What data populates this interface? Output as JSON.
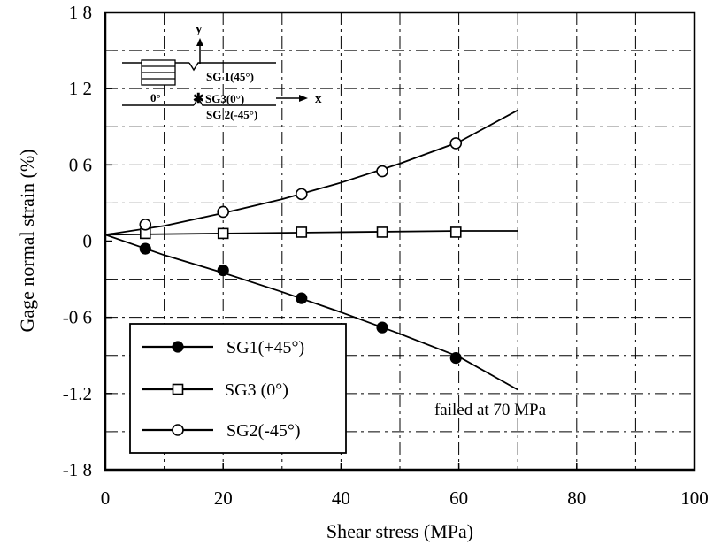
{
  "chart_data": {
    "type": "scatter",
    "xlabel": "Shear stress (MPa)",
    "ylabel": "Gage normal strain (%)",
    "xlim": [
      0,
      100
    ],
    "ylim": [
      -1.8,
      1.8
    ],
    "x_ticks": [
      0,
      20,
      40,
      60,
      80,
      100
    ],
    "x_tick_labels": [
      "0",
      "20",
      "40",
      "60",
      "80",
      "100"
    ],
    "y_ticks": [
      1.8,
      1.2,
      0.6,
      0,
      -0.6,
      -1.2,
      -1.8
    ],
    "y_tick_labels": [
      "1 8",
      "1 2",
      "0 6",
      "0",
      "-0 6",
      "-1.2",
      "-1 8"
    ],
    "grid": true,
    "legend_position": "bottom-left",
    "series": [
      {
        "name": "SG1(+45°)",
        "marker": "filled-circle",
        "x": [
          6.8,
          20.0,
          33.3,
          47.0,
          59.5
        ],
        "y": [
          -0.06,
          -0.23,
          -0.45,
          -0.68,
          -0.92
        ],
        "curve_x": [
          0,
          10,
          20,
          30,
          40,
          50,
          60,
          70
        ],
        "curve_y": [
          0.05,
          -0.11,
          -0.25,
          -0.4,
          -0.56,
          -0.73,
          -0.91,
          -1.17
        ]
      },
      {
        "name": "SG3 (0°)",
        "marker": "open-square",
        "x": [
          6.8,
          20.0,
          33.3,
          47.0,
          59.5
        ],
        "y": [
          0.06,
          0.06,
          0.07,
          0.07,
          0.07
        ],
        "curve_x": [
          0,
          20,
          40,
          60,
          70
        ],
        "curve_y": [
          0.05,
          0.06,
          0.07,
          0.08,
          0.08
        ]
      },
      {
        "name": "SG2(-45°)",
        "marker": "open-circle",
        "x": [
          6.8,
          20.0,
          33.3,
          47.0,
          59.5
        ],
        "y": [
          0.13,
          0.23,
          0.37,
          0.55,
          0.77
        ],
        "curve_x": [
          0,
          10,
          20,
          30,
          40,
          50,
          60,
          70
        ],
        "curve_y": [
          0.05,
          0.12,
          0.22,
          0.33,
          0.46,
          0.61,
          0.78,
          1.03
        ]
      }
    ],
    "annotation": "failed at 70 MPa",
    "inset": {
      "y_label": "y",
      "x_label": "x",
      "ply_label": "0°",
      "gauges": [
        "SG 1(45°)",
        "SG3(0°)",
        "SG 2(-45°)"
      ],
      "gauge_marker": "✱"
    }
  }
}
